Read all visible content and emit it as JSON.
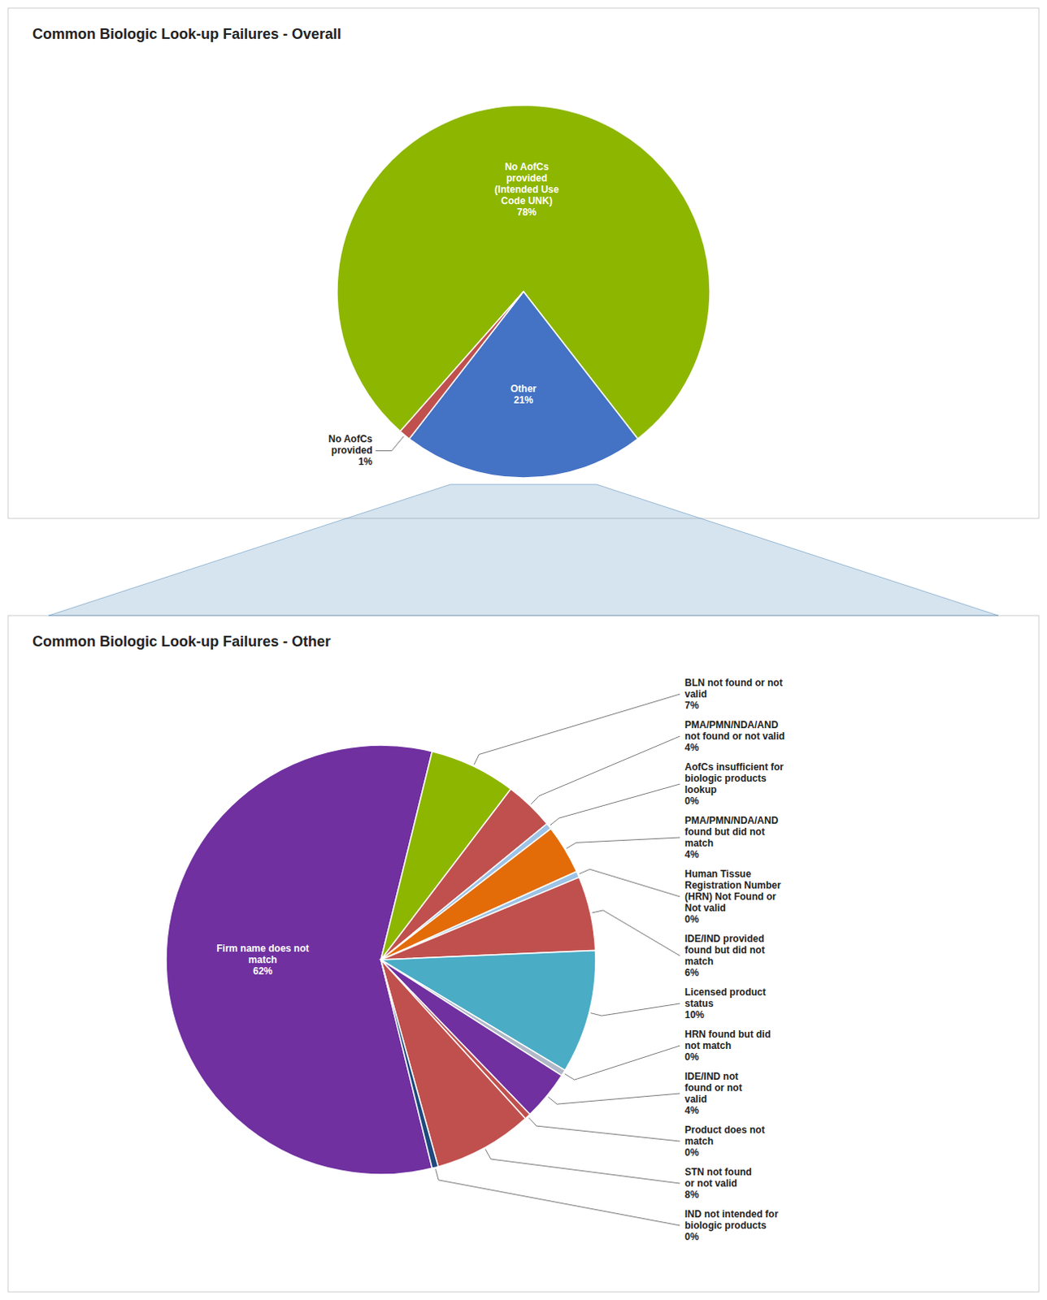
{
  "chart_data": [
    {
      "type": "pie",
      "title": "Common Biologic Look-up Failures - Overall",
      "categories": [
        "No AofCs\nprovided\n(Intended Use\nCode UNK)",
        "Other",
        "No AofCs\nprovided"
      ],
      "values": [
        78,
        21,
        1
      ],
      "value_labels": [
        "78%",
        "21%",
        "1%"
      ],
      "colors": [
        "#8db600",
        "#4472c4",
        "#c0504d"
      ],
      "data_labels": true
    },
    {
      "type": "pie",
      "title": "Common Biologic Look-up Failures - Other",
      "categories": [
        "Firm name does not\nmatch",
        "BLN not found or not\nvalid",
        "PMA/PMN/NDA/AND\nnot found or not valid",
        "AofCs insufficient for\nbiologic products\nlookup",
        "PMA/PMN/NDA/AND\nfound but did not\nmatch",
        "Human Tissue\nRegistration Number\n(HRN) Not Found or\nNot valid",
        "IDE/IND provided\nfound but did not\nmatch",
        "Licensed product\nstatus",
        "HRN found but did\nnot match",
        "IDE/IND not\nfound or not\nvalid",
        "Product does not\nmatch",
        "STN not found\nor not valid",
        "IND not intended for\nbiologic products"
      ],
      "values": [
        62,
        7,
        4,
        0.5,
        4,
        0.5,
        6,
        10,
        0.5,
        4,
        0.5,
        8,
        0.5
      ],
      "value_labels": [
        "62%",
        "7%",
        "4%",
        "0%",
        "4%",
        "0%",
        "6%",
        "10%",
        "0%",
        "4%",
        "0%",
        "8%",
        "0%"
      ],
      "colors": [
        "#7030a0",
        "#8db600",
        "#c0504d",
        "#9dc3e6",
        "#e36c09",
        "#9dc3e6",
        "#c0504d",
        "#4bacc6",
        "#b0b8c8",
        "#7030a0",
        "#c0504d",
        "#c0504d",
        "#1f497d"
      ],
      "data_labels": true
    }
  ]
}
